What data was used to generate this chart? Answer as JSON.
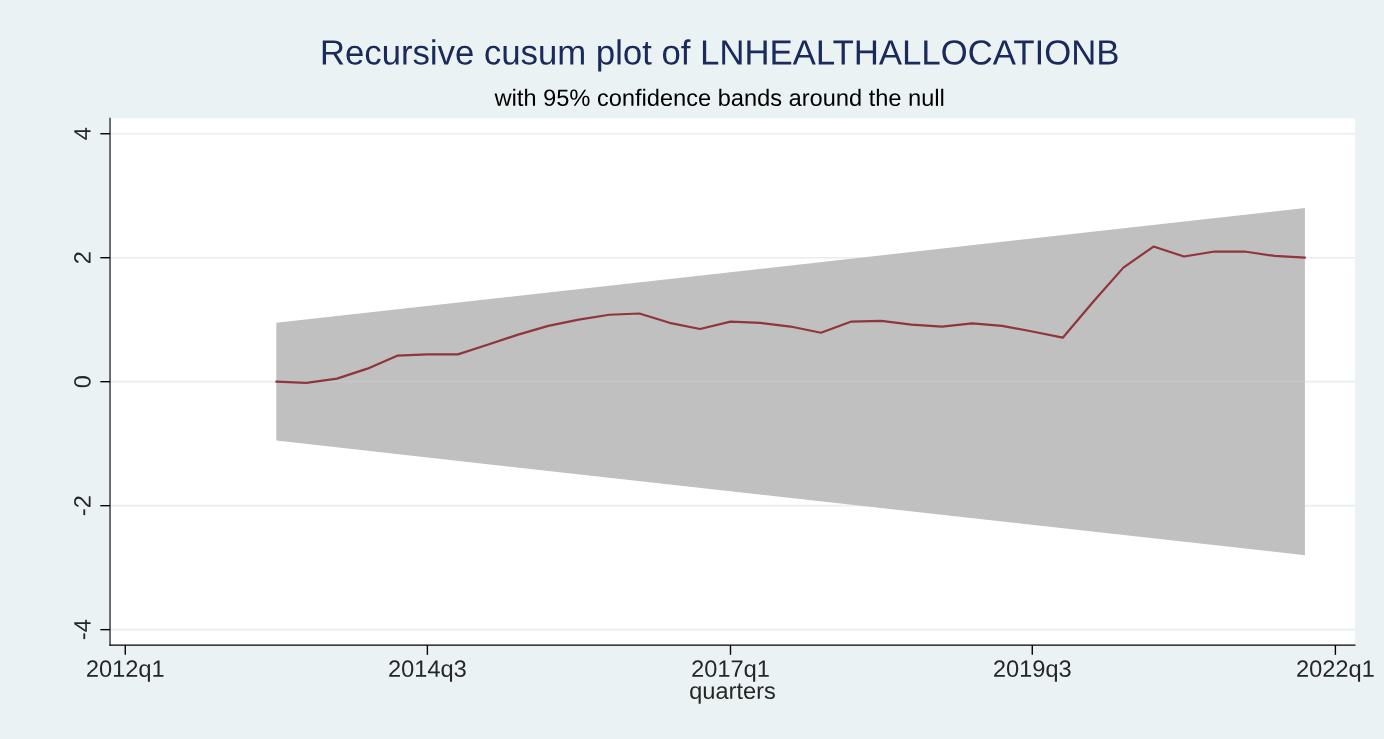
{
  "chart_data": {
    "type": "line",
    "title": "Recursive cusum plot of LNHEALTHALLOCATIONB",
    "subtitle": "with 95% confidence bands around the null",
    "xlabel": "quarters",
    "series": [
      {
        "type": "area",
        "color": "#c0c0c0",
        "x": [
          "2013-04",
          "2021-10"
        ],
        "values": [
          0.95,
          2.8
        ]
      },
      {
        "type": "area",
        "color": "#c0c0c0",
        "x": [
          "2013-04",
          "2021-10"
        ],
        "values": [
          -0.95,
          -2.8
        ]
      },
      {
        "color": "#90353b",
        "x": [
          "2013-04",
          "2013-07",
          "2013-10",
          "2014-01",
          "2014-04",
          "2014-07",
          "2014-10",
          "2015-01",
          "2015-04",
          "2015-07",
          "2015-10",
          "2016-01",
          "2016-04",
          "2016-07",
          "2016-10",
          "2017-01",
          "2017-04",
          "2017-07",
          "2017-10",
          "2018-01",
          "2018-04",
          "2018-07",
          "2018-10",
          "2019-01",
          "2019-04",
          "2019-07",
          "2019-10",
          "2020-01",
          "2020-04",
          "2020-07",
          "2020-10",
          "2021-01",
          "2021-04",
          "2021-07",
          "2021-10"
        ],
        "values": [
          0.0,
          -0.02,
          0.05,
          0.21,
          0.42,
          0.44,
          0.44,
          0.6,
          0.76,
          0.9,
          1.0,
          1.08,
          1.1,
          0.95,
          0.85,
          0.97,
          0.95,
          0.89,
          0.79,
          0.97,
          0.98,
          0.92,
          0.89,
          0.94,
          0.9,
          0.81,
          0.71,
          1.29,
          1.84,
          2.18,
          2.02,
          2.1,
          2.1,
          2.03,
          2.0
        ]
      }
    ],
    "xlim": [
      "2011-11-16",
      "2022-03-01"
    ],
    "ylim": [
      -4.25,
      4.25
    ],
    "xticks": [
      {
        "value": "2012-01",
        "label": "2012q1"
      },
      {
        "value": "2014-07",
        "label": "2014q3"
      },
      {
        "value": "2017-01",
        "label": "2017q1"
      },
      {
        "value": "2019-07",
        "label": "2019q3"
      },
      {
        "value": "2022-01",
        "label": "2022q1"
      }
    ],
    "yticks": [
      -4,
      -2,
      0,
      2,
      4
    ],
    "grid": "y"
  }
}
